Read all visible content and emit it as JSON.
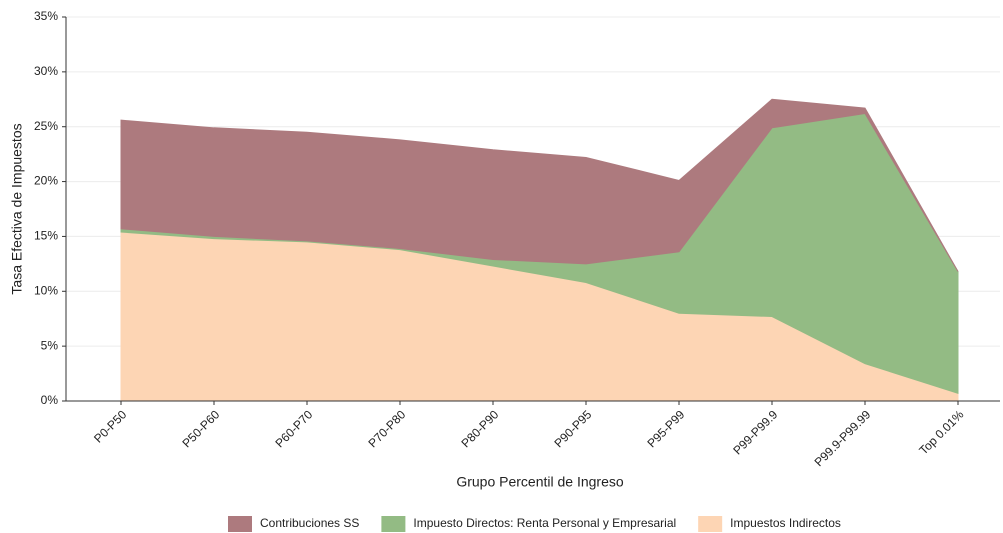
{
  "chart_data": {
    "type": "stacked_area",
    "xlabel": "Grupo Percentil de Ingreso",
    "ylabel": "Tasa Efectiva de Impuestos",
    "categories": [
      "P0-P50",
      "P50-P60",
      "P60-P70",
      "P70-P80",
      "P80-P90",
      "P90-P95",
      "P95-P99",
      "P99-P99.9",
      "P99.9-P99.99",
      "Top 0.01%"
    ],
    "series": [
      {
        "name": "Contribuciones SS",
        "color": "#ad7a7e",
        "values": [
          9.9,
          9.9,
          9.9,
          9.9,
          10.0,
          9.7,
          6.5,
          2.6,
          0.5,
          0
        ]
      },
      {
        "name": "Impuesto Directos: Renta Personal y Empresarial",
        "color": "#93bb84",
        "values": [
          0.3,
          0.2,
          0.1,
          0.1,
          0.6,
          1.7,
          5.6,
          17.2,
          22.8,
          11.1
        ]
      },
      {
        "name": "Impuestos Indirectos",
        "color": "#fdd5b4",
        "values": [
          15.4,
          14.8,
          14.5,
          13.8,
          12.3,
          10.8,
          8.0,
          7.7,
          3.4,
          0.7
        ]
      }
    ],
    "ylim": [
      0,
      35
    ],
    "yticks": [
      {
        "value": 0,
        "label": "0%"
      },
      {
        "value": 5,
        "label": "5%"
      },
      {
        "value": 10,
        "label": "10%"
      },
      {
        "value": 15,
        "label": "15%"
      },
      {
        "value": 20,
        "label": "20%"
      },
      {
        "value": 25,
        "label": "25%"
      },
      {
        "value": 30,
        "label": "30%"
      },
      {
        "value": 35,
        "label": "35%"
      }
    ],
    "grid": true,
    "legend": "bottom"
  }
}
